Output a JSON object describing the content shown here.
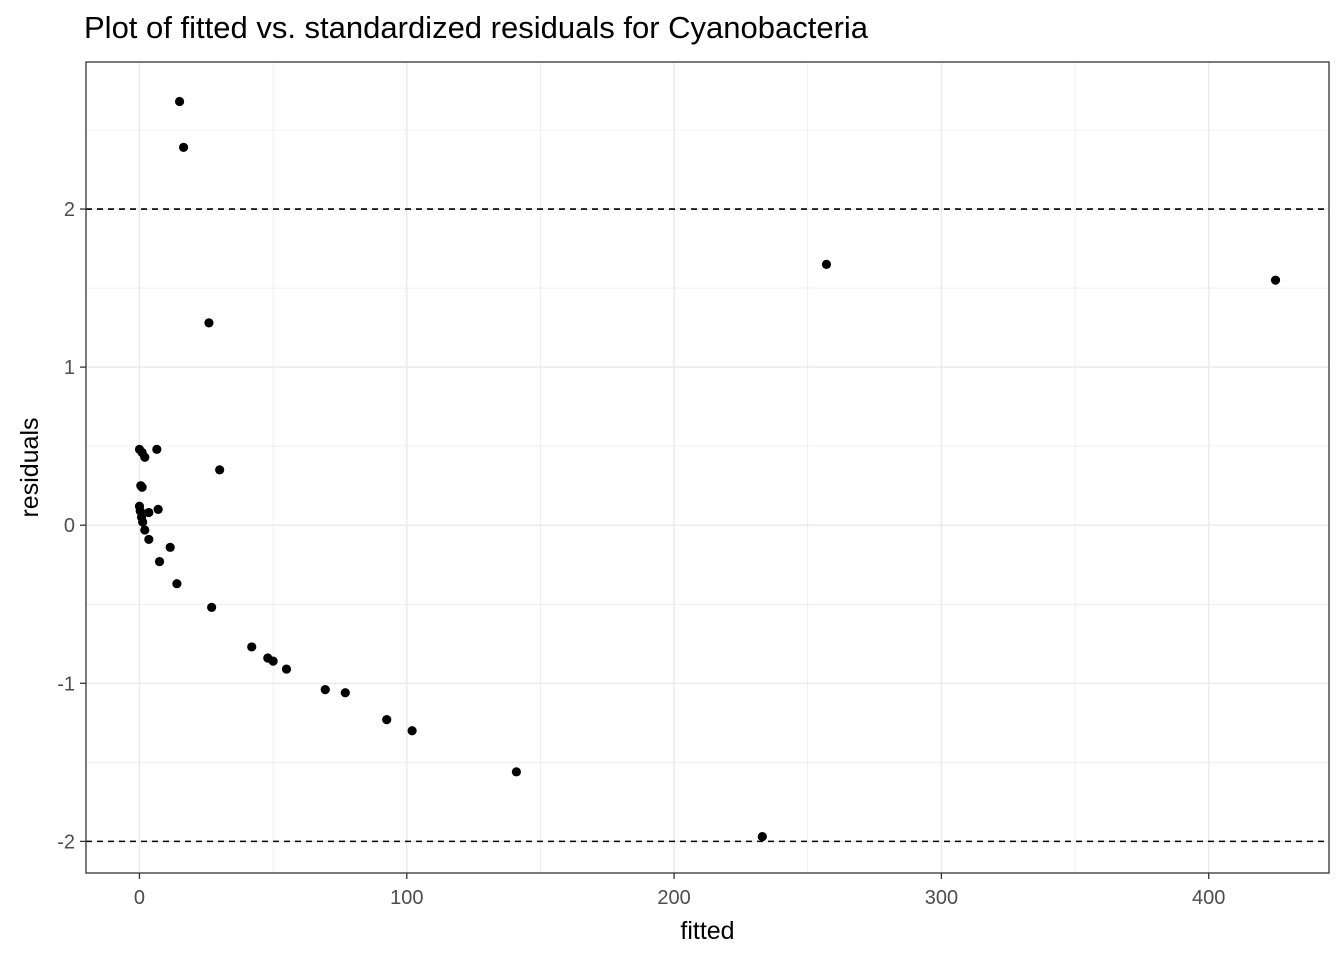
{
  "chart_data": {
    "type": "scatter",
    "title": "Plot of fitted vs. standardized residuals for Cyanobacteria",
    "xlabel": "fitted",
    "ylabel": "residuals",
    "xlim": [
      -20,
      445
    ],
    "ylim": [
      -2.2,
      2.93
    ],
    "x_ticks": [
      0,
      100,
      200,
      300,
      400
    ],
    "x_tick_labels": [
      "0",
      "100",
      "200",
      "300",
      "400"
    ],
    "y_ticks": [
      -2,
      -1,
      0,
      1,
      2
    ],
    "y_tick_labels": [
      "-2",
      "-1",
      "0",
      "1",
      "2"
    ],
    "reference_lines": [
      2,
      -2
    ],
    "grid": true,
    "point_color": "#000000",
    "points": [
      {
        "x": 15,
        "y": 2.68
      },
      {
        "x": 16.5,
        "y": 2.39
      },
      {
        "x": 26,
        "y": 1.28
      },
      {
        "x": 30,
        "y": 0.35
      },
      {
        "x": 0,
        "y": 0.48
      },
      {
        "x": 1,
        "y": 0.46
      },
      {
        "x": 2,
        "y": 0.43
      },
      {
        "x": 6.5,
        "y": 0.48
      },
      {
        "x": 0.5,
        "y": 0.25
      },
      {
        "x": 1,
        "y": 0.24
      },
      {
        "x": 0,
        "y": 0.12
      },
      {
        "x": 0.3,
        "y": 0.09
      },
      {
        "x": 0.8,
        "y": 0.05
      },
      {
        "x": 1.2,
        "y": 0.02
      },
      {
        "x": 2,
        "y": -0.03
      },
      {
        "x": 3.5,
        "y": 0.08
      },
      {
        "x": 7,
        "y": 0.1
      },
      {
        "x": 3.5,
        "y": -0.09
      },
      {
        "x": 11.5,
        "y": -0.14
      },
      {
        "x": 7.5,
        "y": -0.23
      },
      {
        "x": 14,
        "y": -0.37
      },
      {
        "x": 27,
        "y": -0.52
      },
      {
        "x": 42,
        "y": -0.77
      },
      {
        "x": 48,
        "y": -0.84
      },
      {
        "x": 50,
        "y": -0.86
      },
      {
        "x": 55,
        "y": -0.91
      },
      {
        "x": 69.5,
        "y": -1.04
      },
      {
        "x": 77,
        "y": -1.06
      },
      {
        "x": 92.5,
        "y": -1.23
      },
      {
        "x": 102,
        "y": -1.3
      },
      {
        "x": 141,
        "y": -1.56
      },
      {
        "x": 233,
        "y": -1.97
      },
      {
        "x": 257,
        "y": 1.65
      },
      {
        "x": 425,
        "y": 1.55
      }
    ]
  }
}
